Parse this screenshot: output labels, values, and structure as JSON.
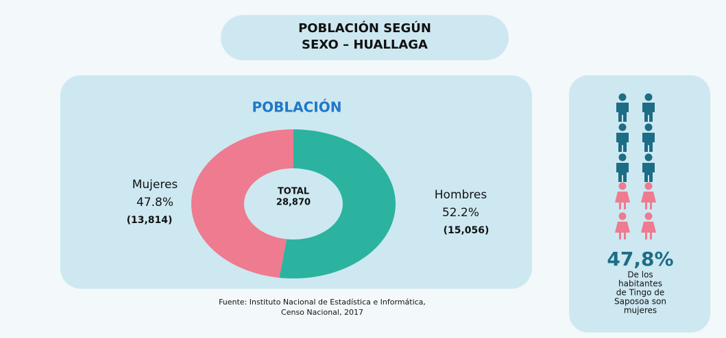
{
  "chart_data": {
    "type": "donut",
    "title": [
      "POBLACIÓN SEGÚN",
      "SEXO – HUALLAGA"
    ],
    "subtitle": "POBLACIÓN",
    "categories": [
      "Hombres",
      "Mujeres"
    ],
    "values": [
      52.2,
      47.8
    ],
    "value_labels": [
      "52.2%",
      "47.8%"
    ],
    "count_labels": [
      "(15,056)",
      "(13,814)"
    ],
    "colors": [
      "#2bb3a0",
      "#ee7b8f"
    ],
    "center_label": [
      "TOTAL",
      "28,870"
    ],
    "year": "2017",
    "source": [
      "Fuente: Instituto Nacional de Estadística e Informática,",
      "Censo Nacional, 2017"
    ],
    "highlight": "47,8%",
    "highlight_text": [
      "De los",
      "habitantes",
      "de Tingo de",
      "Saposoa son",
      "mujeres"
    ]
  }
}
